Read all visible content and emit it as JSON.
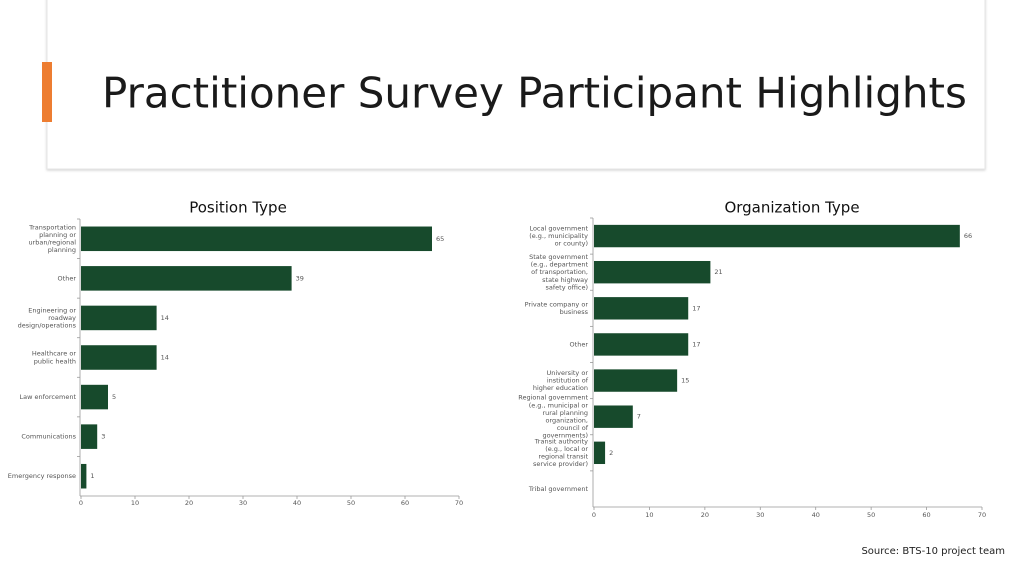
{
  "title": "Practitioner Survey Participant Highlights",
  "source": "Source: BTS-10 project team",
  "chart_data": [
    {
      "type": "barh",
      "title": "Position Type",
      "categories": [
        "Transportation planning or urban/regional planning",
        "Other",
        "Engineering or roadway design/operations",
        "Healthcare or public health",
        "Law enforcement",
        "Communications",
        "Emergency response"
      ],
      "values": [
        65,
        39,
        14,
        14,
        5,
        3,
        1
      ],
      "color": "#174a2c",
      "xlim": [
        0,
        70
      ],
      "xticks": [
        0,
        10,
        20,
        30,
        40,
        50,
        60,
        70
      ]
    },
    {
      "type": "barh",
      "title": "Organization Type",
      "categories": [
        "Local government (e.g., municipality or county)",
        "State government (e.g., department of transportation, state highway safety office)",
        "Private company or business",
        "Other",
        "University or institution of higher education",
        "Regional government (e.g., municipal or rural planning organization, council of governments)",
        "Transit authority (e.g., local or regional transit service provider)",
        "Tribal government"
      ],
      "values": [
        66,
        21,
        17,
        17,
        15,
        7,
        2,
        null
      ],
      "color": "#174a2c",
      "xlim": [
        0,
        70
      ],
      "xticks": [
        0,
        10,
        20,
        30,
        40,
        50,
        60,
        70
      ]
    }
  ]
}
